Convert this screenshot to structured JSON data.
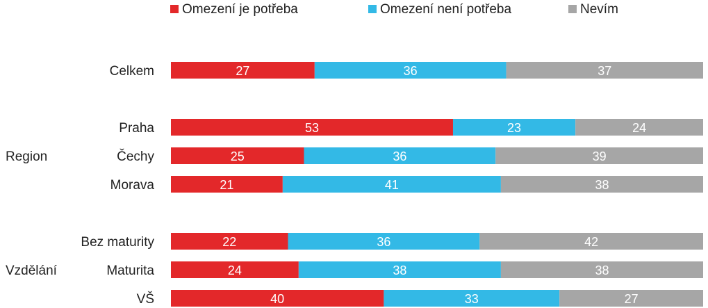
{
  "chart_data": {
    "type": "bar",
    "orientation": "horizontal",
    "stacked": true,
    "percent_stacked": true,
    "legend_position": "top",
    "grid": false,
    "xlim": [
      0,
      100
    ],
    "categories": [
      "Celkem",
      "Praha",
      "Čechy",
      "Morava",
      "Bez maturity",
      "Maturita",
      "VŠ"
    ],
    "groups": [
      {
        "label": "",
        "rows": [
          0
        ]
      },
      {
        "label": "Region",
        "rows": [
          1,
          2,
          3
        ]
      },
      {
        "label": "Vzdělání",
        "rows": [
          4,
          5,
          6
        ]
      }
    ],
    "series": [
      {
        "name": "Omezení je potřeba",
        "color": "#e3282a",
        "values": [
          27,
          53,
          25,
          21,
          22,
          24,
          40
        ]
      },
      {
        "name": "Omezení není potřeba",
        "color": "#33b9e6",
        "values": [
          36,
          23,
          36,
          41,
          36,
          38,
          33
        ]
      },
      {
        "name": "Nevím",
        "color": "#a6a6a6",
        "values": [
          37,
          24,
          39,
          38,
          42,
          38,
          27
        ]
      }
    ]
  }
}
